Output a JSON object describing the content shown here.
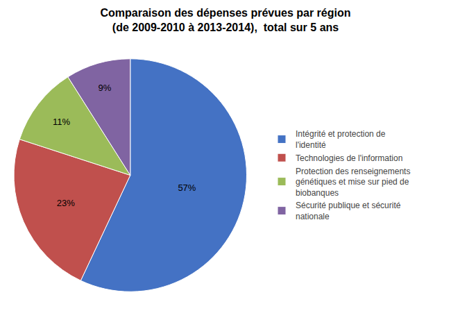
{
  "chart_data": {
    "type": "pie",
    "title": "Comparaison des dépenses prévues par région\n(de 2009-2010 à 2013-2014),  total sur 5 ans",
    "categories": [
      "Intégrité et protection de\nl'identité",
      "Technologies de l'information",
      "Protection des renseignements\ngénétiques et mise sur pied de\nbiobanques",
      "Sécurité publique et sécurité\nnationale"
    ],
    "values": [
      57,
      23,
      11,
      9
    ],
    "value_labels": [
      "57%",
      "23%",
      "11%",
      "9%"
    ],
    "data_labels": true,
    "colors": [
      "#4472C4",
      "#C0504D",
      "#9BBB59",
      "#8064A2"
    ],
    "legend": "right"
  }
}
